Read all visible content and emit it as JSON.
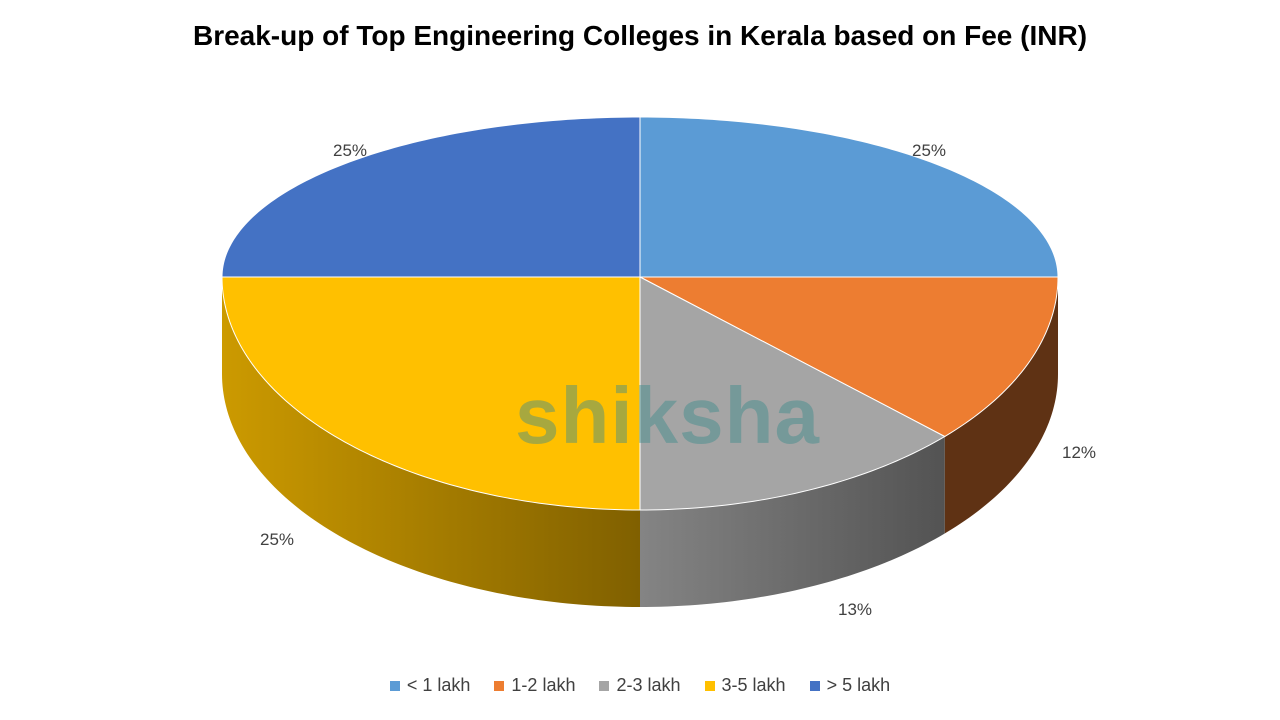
{
  "chart_data": {
    "type": "pie",
    "style": "3d",
    "title": "Break-up of Top Engineering Colleges in Kerala based on Fee (INR)",
    "categories": [
      "< 1 lakh",
      "1-2 lakh",
      "2-3 lakh",
      "3-5 lakh",
      "> 5 lakh"
    ],
    "values": [
      25,
      12,
      13,
      25,
      25
    ],
    "data_labels": [
      "25%",
      "12%",
      "13%",
      "25%",
      "25%"
    ],
    "colors": [
      "#5B9BD5",
      "#ED7D31",
      "#A5A5A5",
      "#FFC000",
      "#4472C4"
    ],
    "legend_position": "bottom"
  },
  "watermark": "shiksha"
}
